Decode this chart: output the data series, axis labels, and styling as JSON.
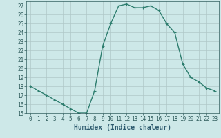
{
  "x": [
    0,
    1,
    2,
    3,
    4,
    5,
    6,
    7,
    8,
    9,
    10,
    11,
    12,
    13,
    14,
    15,
    16,
    17,
    18,
    19,
    20,
    21,
    22,
    23
  ],
  "y": [
    18,
    17.5,
    17,
    16.5,
    16,
    15.5,
    15,
    15,
    17.5,
    22.5,
    25,
    27,
    27.2,
    26.8,
    26.8,
    27,
    26.5,
    25,
    24,
    20.5,
    19,
    18.5,
    17.8,
    17.5
  ],
  "line_color": "#2d7d6e",
  "marker": "+",
  "marker_size": 3.5,
  "marker_linewidth": 0.8,
  "bg_color": "#cde8e8",
  "grid_color": "#b0c8c8",
  "xlim": [
    -0.5,
    23.5
  ],
  "ylim": [
    15,
    27.5
  ],
  "yticks": [
    15,
    16,
    17,
    18,
    19,
    20,
    21,
    22,
    23,
    24,
    25,
    26,
    27
  ],
  "xticks": [
    0,
    1,
    2,
    3,
    4,
    5,
    6,
    7,
    8,
    9,
    10,
    11,
    12,
    13,
    14,
    15,
    16,
    17,
    18,
    19,
    20,
    21,
    22,
    23
  ],
  "xlabel": "Humidex (Indice chaleur)",
  "tick_fontsize": 5.5,
  "xlabel_fontsize": 7,
  "linewidth": 1.0
}
